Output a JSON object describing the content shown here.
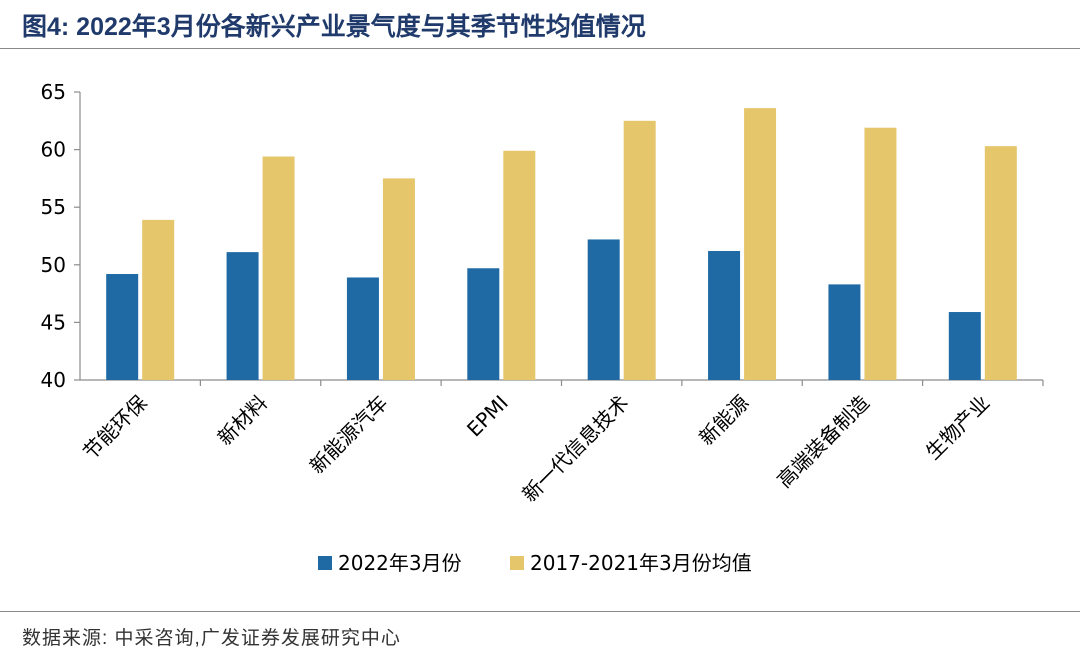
{
  "title": "图4:  2022年3月份各新兴产业景气度与其季节性均值情况",
  "source": "数据来源:  中采咨询,广发证券发展研究中心",
  "colors": {
    "series_2022": "#1f6aa5",
    "series_avg": "#e6c66b",
    "axis": "#8c8c8c",
    "title": "#1f3a6b"
  },
  "chart_data": {
    "type": "bar",
    "categories": [
      "节能环保",
      "新材料",
      "新能源汽车",
      "EPMI",
      "新一代信息技术",
      "新能源",
      "高端装备制造",
      "生物产业"
    ],
    "series": [
      {
        "name": "2022年3月份",
        "values": [
          49.2,
          51.1,
          48.9,
          49.7,
          52.2,
          51.2,
          48.3,
          45.9
        ]
      },
      {
        "name": "2017-2021年3月份均值",
        "values": [
          53.9,
          59.4,
          57.5,
          59.9,
          62.5,
          63.6,
          61.9,
          60.3
        ]
      }
    ],
    "ylim": [
      40,
      65
    ],
    "yticks": [
      40,
      45,
      50,
      55,
      60,
      65
    ],
    "xlabel": "",
    "ylabel": "",
    "grid": false,
    "legend": "bottom"
  }
}
